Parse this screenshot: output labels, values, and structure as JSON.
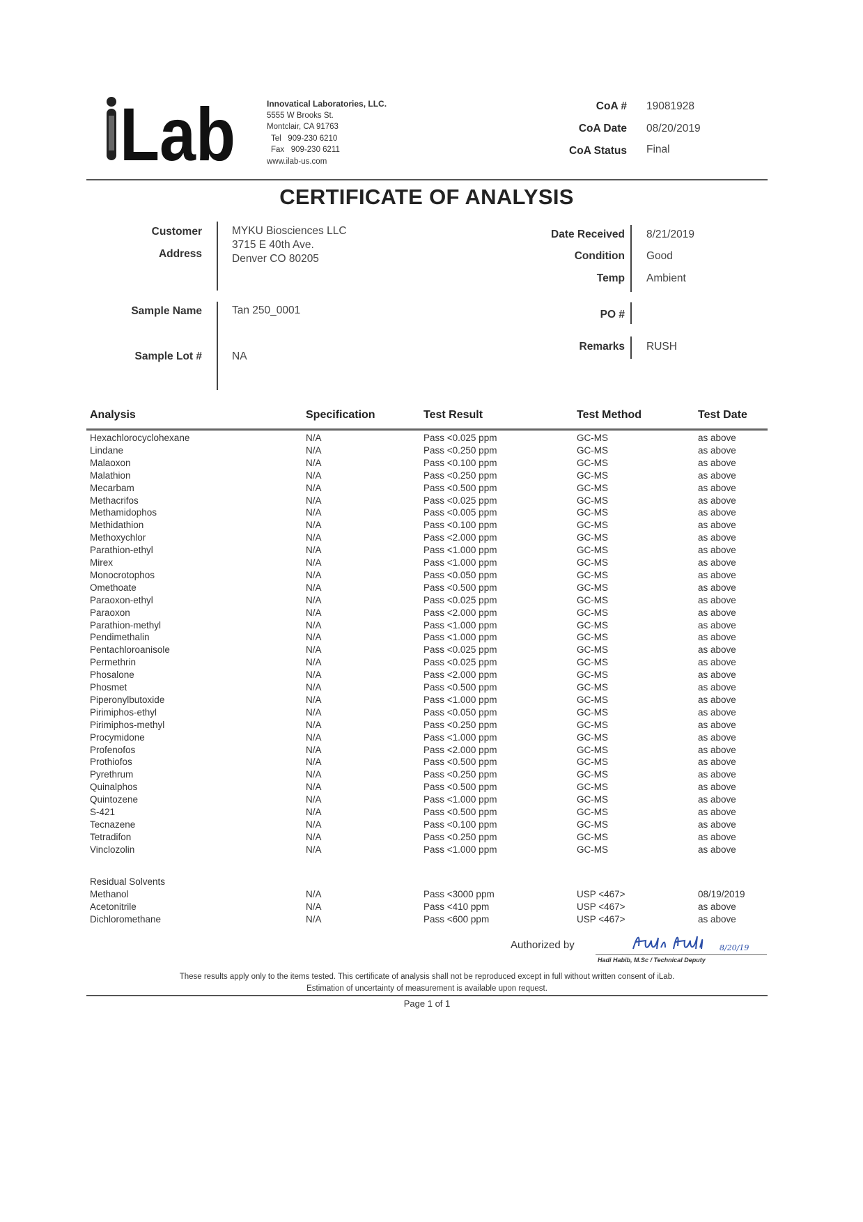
{
  "header": {
    "logo_text": "iLab",
    "company": "Innovatical Laboratories, LLC.",
    "street": "5555 W Brooks St.",
    "city": "Montclair, CA 91763",
    "tel_label": "Tel",
    "tel": "909-230 6210",
    "fax_label": "Fax",
    "fax": "909-230 6211",
    "website": "www.ilab-us.com",
    "coa_number_label": "CoA #",
    "coa_number": "19081928",
    "coa_date_label": "CoA Date",
    "coa_date": "08/20/2019",
    "coa_status_label": "CoA Status",
    "coa_status": "Final"
  },
  "title": "CERTIFICATE OF ANALYSIS",
  "info": {
    "customer_label": "Customer",
    "address_label": "Address",
    "customer_name": "MYKU Biosciences LLC",
    "address_line1": "3715 E 40th Ave.",
    "address_line2": "Denver CO 80205",
    "sample_name_label": "Sample Name",
    "sample_name": "Tan 250_0001",
    "sample_lot_label": "Sample Lot #",
    "sample_lot": "NA",
    "date_received_label": "Date Received",
    "date_received": "8/21/2019",
    "condition_label": "Condition",
    "condition": "Good",
    "temp_label": "Temp",
    "temp": "Ambient",
    "po_label": "PO #",
    "po": "",
    "remarks_label": "Remarks",
    "remarks": "RUSH"
  },
  "table": {
    "columns": [
      "Analysis",
      "Specification",
      "Test Result",
      "Test Method",
      "Test Date"
    ],
    "rows": [
      [
        "Hexachlorocyclohexane",
        "N/A",
        "Pass <0.025 ppm",
        "GC-MS",
        "as above"
      ],
      [
        "Lindane",
        "N/A",
        "Pass <0.250 ppm",
        "GC-MS",
        "as above"
      ],
      [
        "Malaoxon",
        "N/A",
        "Pass <0.100 ppm",
        "GC-MS",
        "as above"
      ],
      [
        "Malathion",
        "N/A",
        "Pass <0.250 ppm",
        "GC-MS",
        "as above"
      ],
      [
        "Mecarbam",
        "N/A",
        "Pass <0.500 ppm",
        "GC-MS",
        "as above"
      ],
      [
        "Methacrifos",
        "N/A",
        "Pass <0.025 ppm",
        "GC-MS",
        "as above"
      ],
      [
        "Methamidophos",
        "N/A",
        "Pass <0.005 ppm",
        "GC-MS",
        "as above"
      ],
      [
        "Methidathion",
        "N/A",
        "Pass <0.100 ppm",
        "GC-MS",
        "as above"
      ],
      [
        "Methoxychlor",
        "N/A",
        "Pass <2.000 ppm",
        "GC-MS",
        "as above"
      ],
      [
        "Parathion-ethyl",
        "N/A",
        "Pass <1.000 ppm",
        "GC-MS",
        "as above"
      ],
      [
        "Mirex",
        "N/A",
        "Pass <1.000 ppm",
        "GC-MS",
        "as above"
      ],
      [
        "Monocrotophos",
        "N/A",
        "Pass <0.050 ppm",
        "GC-MS",
        "as above"
      ],
      [
        "Omethoate",
        "N/A",
        "Pass <0.500 ppm",
        "GC-MS",
        "as above"
      ],
      [
        "Paraoxon-ethyl",
        "N/A",
        "Pass <0.025 ppm",
        "GC-MS",
        "as above"
      ],
      [
        "Paraoxon",
        "N/A",
        "Pass <2.000 ppm",
        "GC-MS",
        "as above"
      ],
      [
        "Parathion-methyl",
        "N/A",
        "Pass <1.000 ppm",
        "GC-MS",
        "as above"
      ],
      [
        "Pendimethalin",
        "N/A",
        "Pass <1.000 ppm",
        "GC-MS",
        "as above"
      ],
      [
        "Pentachloroanisole",
        "N/A",
        "Pass <0.025 ppm",
        "GC-MS",
        "as above"
      ],
      [
        "Permethrin",
        "N/A",
        "Pass <0.025 ppm",
        "GC-MS",
        "as above"
      ],
      [
        "Phosalone",
        "N/A",
        "Pass <2.000 ppm",
        "GC-MS",
        "as above"
      ],
      [
        "Phosmet",
        "N/A",
        "Pass <0.500 ppm",
        "GC-MS",
        "as above"
      ],
      [
        "Piperonylbutoxide",
        "N/A",
        "Pass <1.000 ppm",
        "GC-MS",
        "as above"
      ],
      [
        "Pirimiphos-ethyl",
        "N/A",
        "Pass <0.050 ppm",
        "GC-MS",
        "as above"
      ],
      [
        "Pirimiphos-methyl",
        "N/A",
        "Pass <0.250 ppm",
        "GC-MS",
        "as above"
      ],
      [
        "Procymidone",
        "N/A",
        "Pass <1.000 ppm",
        "GC-MS",
        "as above"
      ],
      [
        "Profenofos",
        "N/A",
        "Pass <2.000 ppm",
        "GC-MS",
        "as above"
      ],
      [
        "Prothiofos",
        "N/A",
        "Pass <0.500 ppm",
        "GC-MS",
        "as above"
      ],
      [
        "Pyrethrum",
        "N/A",
        "Pass <0.250 ppm",
        "GC-MS",
        "as above"
      ],
      [
        "Quinalphos",
        "N/A",
        "Pass <0.500 ppm",
        "GC-MS",
        "as above"
      ],
      [
        "Quintozene",
        "N/A",
        "Pass <1.000 ppm",
        "GC-MS",
        "as above"
      ],
      [
        "S-421",
        "N/A",
        "Pass <0.500 ppm",
        "GC-MS",
        "as above"
      ],
      [
        "Tecnazene",
        "N/A",
        "Pass <0.100 ppm",
        "GC-MS",
        "as above"
      ],
      [
        "Tetradifon",
        "N/A",
        "Pass <0.250 ppm",
        "GC-MS",
        "as above"
      ],
      [
        "Vinclozolin",
        "N/A",
        "Pass <1.000 ppm",
        "GC-MS",
        "as above"
      ]
    ],
    "section_label": "Residual Solvents",
    "solvent_rows": [
      [
        "Methanol",
        "N/A",
        "Pass <3000 ppm",
        "USP <467>",
        "08/19/2019"
      ],
      [
        "Acetonitrile",
        "N/A",
        "Pass <410 ppm",
        "USP <467>",
        "as above"
      ],
      [
        "Dichloromethane",
        "N/A",
        "Pass <600 ppm",
        "USP <467>",
        "as above"
      ]
    ]
  },
  "footer": {
    "authorized_by_label": "Authorized by",
    "signature": "Hadi Habib",
    "signature_date": "8/20/19",
    "signer": "Hadi Habib, M.Sc / Technical Deputy",
    "disclaimer_line1": "These results apply only to the items tested. This certificate of analysis shall not be reproduced except in full without written consent of iLab.",
    "disclaimer_line2": "Estimation of uncertainty of measurement is available upon request.",
    "page": "Page 1 of 1"
  },
  "colors": {
    "signature_ink": "#2c4fa8",
    "text": "#2a2a2a"
  }
}
